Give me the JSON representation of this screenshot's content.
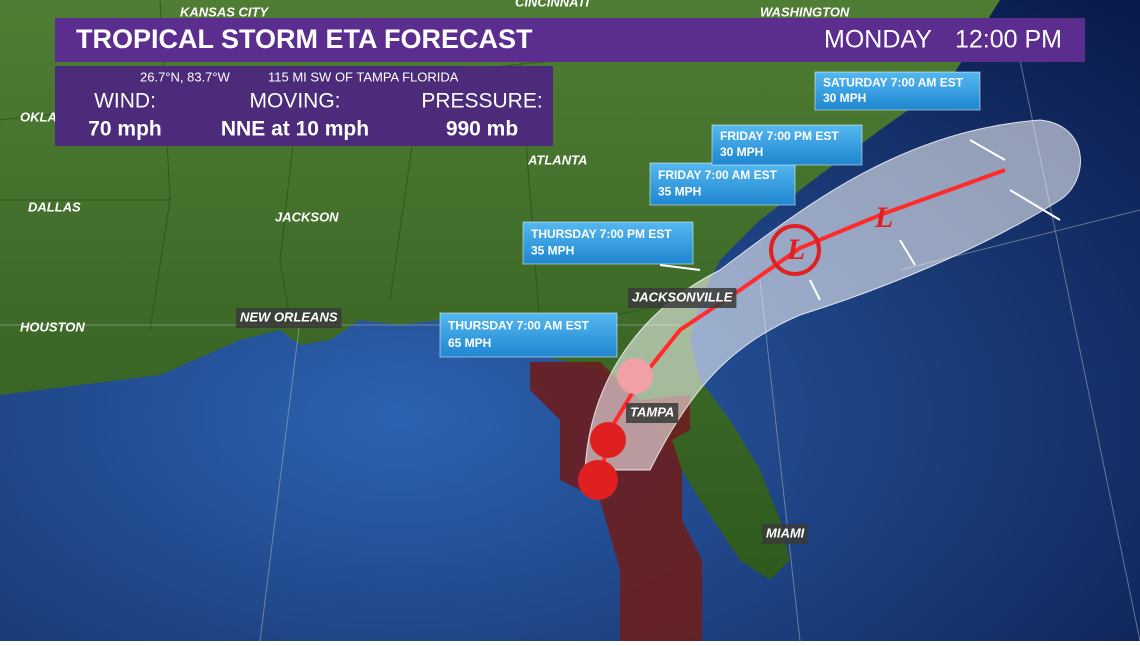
{
  "header": {
    "title": "TROPICAL STORM ETA FORECAST",
    "day": "MONDAY",
    "time": "12:00 PM"
  },
  "info": {
    "position": "26.7°N, 83.7°W",
    "location": "115 MI SW OF TAMPA FLORIDA",
    "fields": [
      {
        "label": "WIND:",
        "value": "70 mph"
      },
      {
        "label": "MOVING:",
        "value": "NNE at 10 mph"
      },
      {
        "label": "PRESSURE:",
        "value": "990 mb"
      }
    ]
  },
  "forecasts": [
    {
      "time": "THURSDAY 7:00 AM EST",
      "wind": "65 MPH"
    },
    {
      "time": "THURSDAY 7:00 PM EST",
      "wind": "35 MPH"
    },
    {
      "time": "FRIDAY 7:00 AM EST",
      "wind": "35 MPH"
    },
    {
      "time": "FRIDAY 7:00 PM EST",
      "wind": "30 MPH"
    },
    {
      "time": "SATURDAY 7:00 AM EST",
      "wind": "30 MPH"
    }
  ],
  "symbols": [
    "L",
    "L"
  ],
  "cities": [
    "KANSAS CITY",
    "CINCINNATI",
    "WASHINGTON",
    "OKLA",
    "DALLAS",
    "JACKSON",
    "ATLANTA",
    "HOUSTON",
    "NEW ORLEANS",
    "JACKSONVILLE",
    "TAMPA",
    "MIAMI"
  ]
}
